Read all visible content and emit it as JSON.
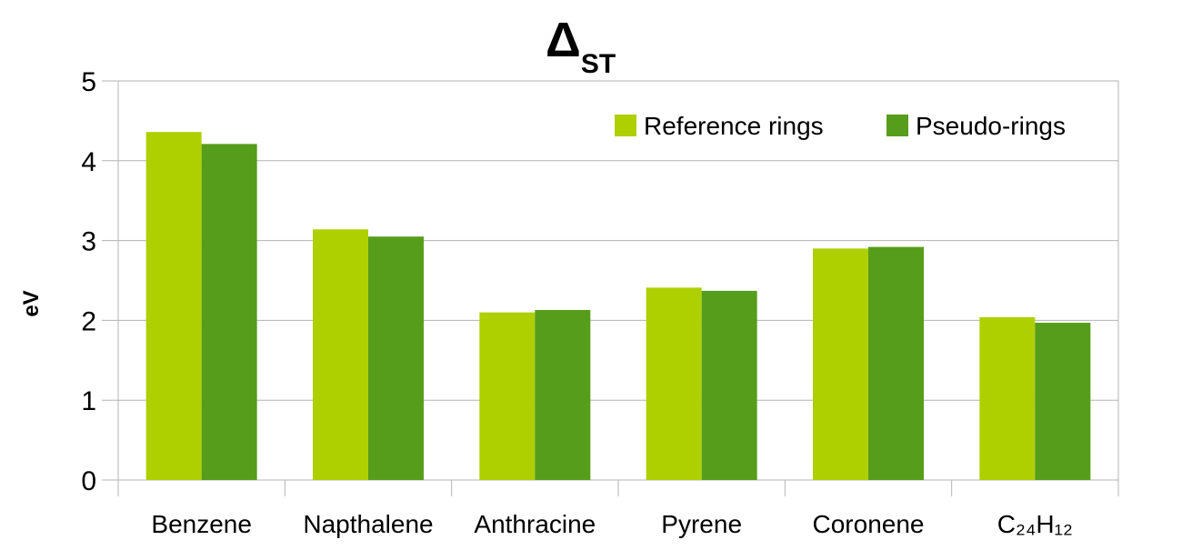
{
  "chart_data": {
    "type": "bar",
    "title_main": "Δ",
    "title_sub": "ST",
    "xlabel": "",
    "ylabel": "eV",
    "ylim": [
      0,
      5
    ],
    "yticks": [
      "0",
      "1",
      "2",
      "3",
      "4",
      "5"
    ],
    "grid": true,
    "legend_position": "top-right",
    "categories": [
      "Benzene",
      "Napthalene",
      "Anthracine",
      "Pyrene",
      "Coronene",
      "C₂₄H₁₂"
    ],
    "series": [
      {
        "name": "Reference rings",
        "color": "#aecf00",
        "values": [
          4.36,
          3.14,
          2.1,
          2.41,
          2.9,
          2.04
        ]
      },
      {
        "name": "Pseudo-rings",
        "color": "#579d1c",
        "values": [
          4.21,
          3.05,
          2.13,
          2.37,
          2.92,
          1.97
        ]
      }
    ]
  }
}
